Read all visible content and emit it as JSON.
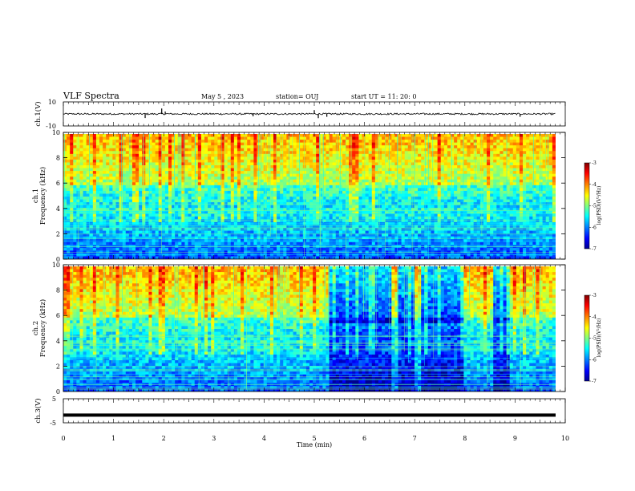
{
  "header": {
    "title": "VLF Spectra",
    "date": "May 5 , 2023",
    "station": "station= OUJ",
    "start_ut": "start UT = 11: 20: 0"
  },
  "chart_data": [
    {
      "type": "line",
      "panel": "ch1-waveform",
      "ylabel": "ch.1(V)",
      "ylim": [
        -10,
        10
      ],
      "yticks": [
        "10",
        "-10"
      ],
      "baseline_value": 0,
      "spikes": [
        {
          "x": 1.63,
          "y": -3.4
        },
        {
          "x": 1.96,
          "y": 4.5
        },
        {
          "x": 2.03,
          "y": 2.0
        },
        {
          "x": 3.78,
          "y": -2.0
        },
        {
          "x": 5.0,
          "y": 3.2
        },
        {
          "x": 5.08,
          "y": -3.5
        },
        {
          "x": 5.25,
          "y": -2.4
        },
        {
          "x": 9.1,
          "y": -2.4
        }
      ]
    },
    {
      "type": "heatmap",
      "panel": "ch1-spectrogram",
      "ylabel_line1": "ch.1",
      "ylabel_line2": "Frequency (kHz)",
      "ylim": [
        0,
        10
      ],
      "yticks": [
        "0",
        "2",
        "4",
        "6",
        "8",
        "10"
      ],
      "xlim": [
        0,
        10
      ],
      "quiet_intervals": []
    },
    {
      "type": "heatmap",
      "panel": "ch2-spectrogram",
      "ylabel_line1": "ch.2",
      "ylabel_line2": "Frequency (kHz)",
      "ylim": [
        0,
        10
      ],
      "yticks": [
        "0",
        "2",
        "4",
        "6",
        "8",
        "10"
      ],
      "xlim": [
        0,
        10
      ],
      "quiet_intervals": [
        [
          5.3,
          6.25
        ],
        [
          6.3,
          6.55
        ],
        [
          6.7,
          7.0
        ],
        [
          7.15,
          7.95
        ],
        [
          8.55,
          8.9
        ]
      ]
    },
    {
      "type": "line",
      "panel": "ch3-waveform",
      "ylabel": "ch.3(V)",
      "ylim": [
        -5,
        5
      ],
      "yticks": [
        "5",
        "-5"
      ],
      "level": -1.8
    }
  ],
  "xaxis": {
    "xlabel": "Time (min)",
    "xlim": [
      0,
      10
    ],
    "ticks": [
      "0",
      "1",
      "2",
      "3",
      "4",
      "5",
      "6",
      "7",
      "8",
      "9",
      "10"
    ]
  },
  "colorbar": {
    "label": "log(PSD)(V²/Hz)",
    "range": [
      -7,
      -3
    ],
    "ticks": [
      "-3",
      "-4",
      "-5",
      "-6",
      "-7"
    ],
    "colors": [
      "#7f0000",
      "#ff0000",
      "#ff8000",
      "#ffff00",
      "#80ff80",
      "#00ffff",
      "#0080ff",
      "#0000ff",
      "#00008f"
    ]
  }
}
